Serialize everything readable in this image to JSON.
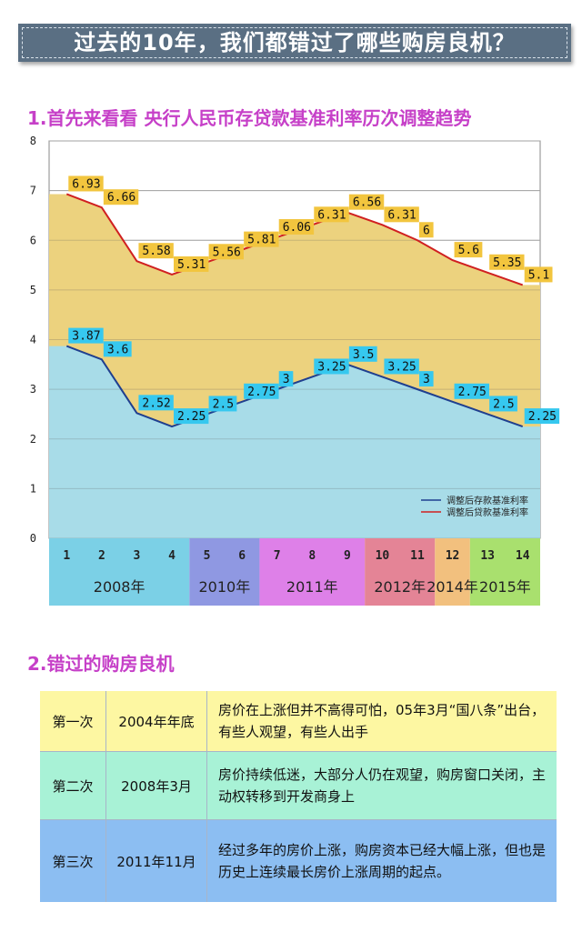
{
  "banner": {
    "title": "过去的10年，我们都错过了哪些购房良机？"
  },
  "section1": {
    "title": "1.首先来看看 央行人民币存贷款基准利率历次调整趋势"
  },
  "chart_data": {
    "type": "area",
    "x": [
      1,
      2,
      3,
      4,
      5,
      6,
      7,
      8,
      9,
      10,
      11,
      12,
      13,
      14
    ],
    "x_tick_labels": [
      "1",
      "2",
      "3",
      "4",
      "5",
      "6",
      "7",
      "8",
      "9",
      "10",
      "11",
      "12",
      "13",
      "14"
    ],
    "ylim": [
      0,
      8
    ],
    "y_ticks": [
      "0",
      "1",
      "2",
      "3",
      "4",
      "5",
      "6",
      "7",
      "8"
    ],
    "grid": true,
    "legend_position": "bottom-right",
    "series": [
      {
        "name": "调整后存款基准利率",
        "values": [
          3.87,
          3.6,
          2.52,
          2.25,
          2.5,
          2.75,
          3,
          3.25,
          3.5,
          3.25,
          3,
          2.75,
          2.5,
          2.25
        ],
        "labels": [
          "3.87",
          "3.6",
          "2.52",
          "2.25",
          "2.5",
          "2.75",
          "3",
          "3.25",
          "3.5",
          "3.25",
          "3",
          "2.75",
          "2.5",
          "2.25"
        ],
        "line_color": "#1f3f8f",
        "fill_color": "#a8dce8",
        "label_bg": "#36c8ef"
      },
      {
        "name": "调整后贷款基准利率",
        "values": [
          6.93,
          6.66,
          5.58,
          5.31,
          5.56,
          5.81,
          6.06,
          6.31,
          6.56,
          6.31,
          6,
          5.6,
          5.35,
          5.1
        ],
        "labels": [
          "6.93",
          "6.66",
          "5.58",
          "5.31",
          "5.56",
          "5.81",
          "6.06",
          "6.31",
          "6.56",
          "6.31",
          "6",
          "5.6",
          "5.35",
          "5.1"
        ],
        "line_color": "#d02020",
        "fill_color": "#ecd27e",
        "label_bg": "#f2c53e"
      }
    ],
    "year_groups": [
      {
        "label": "2008年",
        "from": 1,
        "to": 4,
        "color": "#7bd0e6"
      },
      {
        "label": "2010年",
        "from": 5,
        "to": 6,
        "color": "#8f98e2"
      },
      {
        "label": "2011年",
        "from": 7,
        "to": 9,
        "color": "#de80e8"
      },
      {
        "label": "2012年",
        "from": 10,
        "to": 11,
        "color": "#e48496"
      },
      {
        "label": "2014年",
        "from": 12,
        "to": 12,
        "color": "#f2c07e"
      },
      {
        "label": "2015年",
        "from": 13,
        "to": 14,
        "color": "#a9e06e"
      }
    ]
  },
  "section2": {
    "title": "2.错过的购房良机"
  },
  "table": {
    "rows": [
      {
        "order": "第一次",
        "date": "2004年年底",
        "desc": "房价在上涨但并不高得可怕，05年3月“国八条”出台，有些人观望，有些人出手",
        "color": "#fdf7a2"
      },
      {
        "order": "第二次",
        "date": "2008年3月",
        "desc": "房价持续低迷，大部分人仍在观望，购房窗口关闭，主动权转移到开发商身上",
        "color": "#a8f2d6"
      },
      {
        "order": "第三次",
        "date": "2011年11月",
        "desc": "经过多年的房价上涨，购房资本已经大幅上涨，但也是历史上连续最长房价上涨周期的起点。",
        "color": "#8cbef2"
      }
    ]
  }
}
